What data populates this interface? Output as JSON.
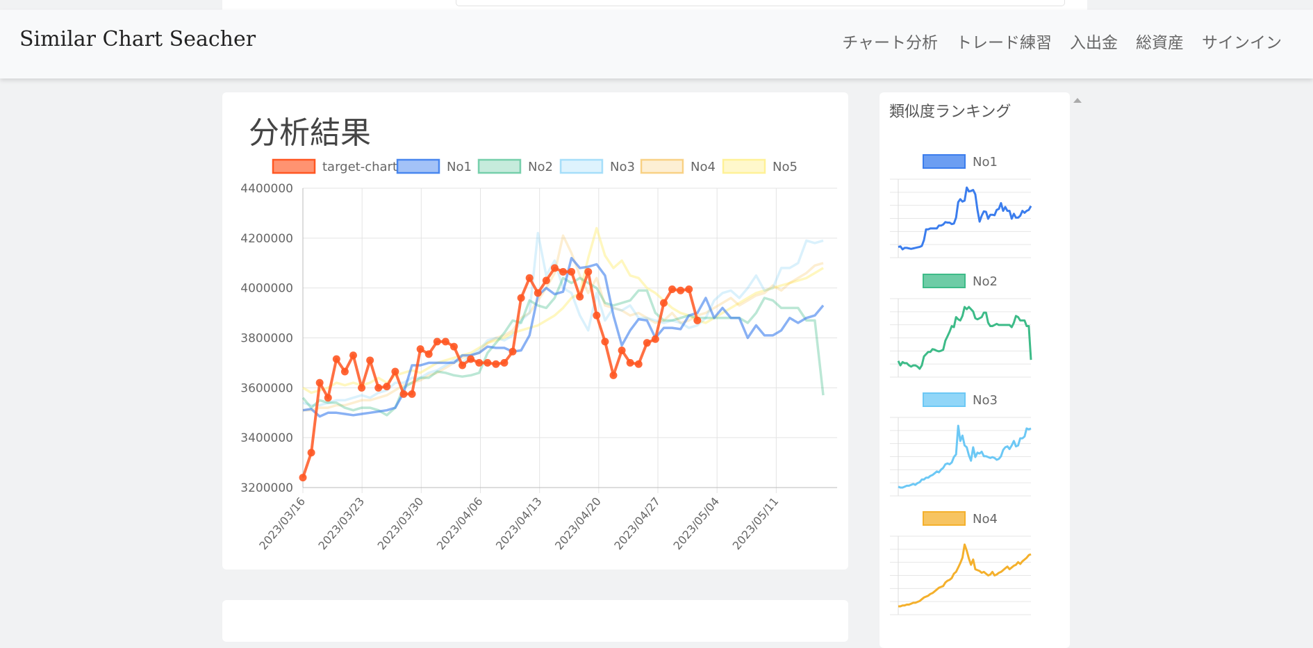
{
  "header": {
    "brand": "Similar Chart Seacher",
    "nav": [
      "チャート分析",
      "トレード練習",
      "入出金",
      "総資産",
      "サインイン"
    ]
  },
  "main": {
    "title": "分析結果"
  },
  "sidebar": {
    "title": "類似度ランキング",
    "items": [
      {
        "label": "No1",
        "color": "#3b7ded"
      },
      {
        "label": "No2",
        "color": "#3dbb88"
      },
      {
        "label": "No3",
        "color": "#6cc8f5"
      },
      {
        "label": "No4",
        "color": "#f4b02c"
      }
    ]
  },
  "chart_data": {
    "type": "line",
    "legend": [
      "target-chart",
      "No1",
      "No2",
      "No3",
      "No4",
      "No5"
    ],
    "x_tick_labels": [
      "2023/03/16",
      "2023/03/23",
      "2023/03/30",
      "2023/04/06",
      "2023/04/13",
      "2023/04/20",
      "2023/04/27",
      "2023/05/04",
      "2023/05/11"
    ],
    "ylim": [
      3200000,
      4400000
    ],
    "y_ticks": [
      3200000,
      3400000,
      3600000,
      3800000,
      4000000,
      4200000,
      4400000
    ],
    "x_count": 63,
    "series": [
      {
        "name": "target-chart",
        "color": "#ff5722",
        "opacity": 0.85,
        "points": true,
        "values": [
          3240000,
          3340000,
          3620000,
          3560000,
          3715000,
          3665000,
          3730000,
          3600000,
          3710000,
          3600000,
          3605000,
          3665000,
          3575000,
          3575000,
          3755000,
          3735000,
          3785000,
          3785000,
          3765000,
          3690000,
          3715000,
          3700000,
          3700000,
          3695000,
          3700000,
          3745000,
          3960000,
          4040000,
          3980000,
          4030000,
          4080000,
          4065000,
          4065000,
          3965000,
          4065000,
          3890000,
          3785000,
          3650000,
          3750000,
          3700000,
          3695000,
          3780000,
          3795000,
          3940000,
          3995000,
          3990000,
          3995000,
          3870000
        ]
      },
      {
        "name": "No1",
        "color": "#3b7ded",
        "opacity": 0.6,
        "points": false,
        "values": [
          3510000,
          3515000,
          3485000,
          3500000,
          3500000,
          3495000,
          3490000,
          3495000,
          3500000,
          3505000,
          3510000,
          3520000,
          3580000,
          3690000,
          3690000,
          3700000,
          3700000,
          3700000,
          3700000,
          3730000,
          3730000,
          3740000,
          3765000,
          3760000,
          3760000,
          3745000,
          3750000,
          3810000,
          3970000,
          4000000,
          3975000,
          3985000,
          4120000,
          4080000,
          4085000,
          4095000,
          4050000,
          3890000,
          3770000,
          3830000,
          3875000,
          3870000,
          3800000,
          3840000,
          3840000,
          3835000,
          3890000,
          3900000,
          3960000,
          3880000,
          3920000,
          3880000,
          3880000,
          3800000,
          3850000,
          3810000,
          3810000,
          3830000,
          3880000,
          3860000,
          3880000,
          3890000,
          3930000
        ]
      },
      {
        "name": "No2",
        "color": "#3dbb88",
        "opacity": 0.35,
        "points": false,
        "values": [
          3560000,
          3520000,
          3550000,
          3540000,
          3540000,
          3520000,
          3510000,
          3520000,
          3520000,
          3510000,
          3490000,
          3520000,
          3600000,
          3620000,
          3640000,
          3640000,
          3665000,
          3660000,
          3650000,
          3645000,
          3650000,
          3660000,
          3740000,
          3780000,
          3820000,
          3870000,
          3860000,
          3950000,
          3930000,
          3920000,
          3960000,
          4040000,
          4020000,
          4040000,
          4020000,
          4000000,
          3940000,
          3930000,
          3940000,
          3950000,
          3990000,
          3990000,
          3900000,
          3870000,
          3870000,
          3880000,
          3890000,
          3880000,
          3880000,
          3880000,
          3880000,
          3880000,
          3880000,
          3860000,
          3900000,
          3960000,
          3950000,
          3920000,
          3920000,
          3920000,
          3870000,
          3870000,
          3570000
        ]
      },
      {
        "name": "No3",
        "color": "#6cc8f5",
        "opacity": 0.25,
        "points": false,
        "values": [
          3540000,
          3530000,
          3530000,
          3540000,
          3550000,
          3550000,
          3560000,
          3570000,
          3560000,
          3580000,
          3590000,
          3620000,
          3620000,
          3640000,
          3640000,
          3660000,
          3670000,
          3690000,
          3710000,
          3700000,
          3730000,
          3750000,
          3790000,
          3800000,
          3790000,
          3810000,
          3870000,
          3900000,
          4220000,
          4050000,
          4110000,
          4000000,
          3980000,
          3890000,
          3830000,
          3980000,
          3870000,
          3920000,
          3910000,
          3930000,
          3880000,
          3880000,
          3870000,
          3860000,
          3870000,
          3860000,
          3840000,
          3850000,
          3880000,
          3950000,
          3980000,
          3990000,
          3960000,
          4000000,
          4050000,
          3990000,
          4000000,
          4080000,
          4080000,
          4100000,
          4190000,
          4180000,
          4190000
        ]
      },
      {
        "name": "No4",
        "color": "#f4b02c",
        "opacity": 0.22,
        "points": false,
        "values": [
          3510000,
          3510000,
          3520000,
          3520000,
          3530000,
          3530000,
          3540000,
          3550000,
          3550000,
          3560000,
          3570000,
          3590000,
          3610000,
          3620000,
          3630000,
          3650000,
          3660000,
          3680000,
          3700000,
          3720000,
          3730000,
          3740000,
          3780000,
          3800000,
          3810000,
          3830000,
          3880000,
          3900000,
          3950000,
          4000000,
          4060000,
          4210000,
          4140000,
          4050000,
          3980000,
          4040000,
          3930000,
          3920000,
          3910000,
          3890000,
          3900000,
          3880000,
          3860000,
          3870000,
          3900000,
          3860000,
          3870000,
          3890000,
          3900000,
          3920000,
          3940000,
          3960000,
          3930000,
          3950000,
          3970000,
          3980000,
          4010000,
          3990000,
          4020000,
          4040000,
          4060000,
          4090000,
          4100000
        ]
      },
      {
        "name": "No5",
        "color": "#fff08a",
        "opacity": 0.55,
        "points": false,
        "values": [
          3600000,
          3580000,
          3590000,
          3600000,
          3620000,
          3610000,
          3620000,
          3610000,
          3620000,
          3640000,
          3620000,
          3650000,
          3660000,
          3670000,
          3660000,
          3680000,
          3700000,
          3710000,
          3720000,
          3730000,
          3740000,
          3760000,
          3780000,
          3790000,
          3800000,
          3820000,
          3830000,
          3840000,
          3850000,
          3870000,
          3890000,
          3920000,
          3960000,
          3980000,
          4120000,
          4240000,
          4130000,
          4080000,
          4110000,
          4050000,
          4040000,
          4000000,
          3980000,
          3950000,
          3920000,
          3900000,
          3890000,
          3870000,
          3860000,
          3880000,
          3900000,
          3920000,
          3940000,
          3960000,
          3980000,
          3990000,
          4000000,
          4010000,
          4020000,
          4030000,
          4040000,
          4060000,
          4080000
        ]
      }
    ]
  }
}
